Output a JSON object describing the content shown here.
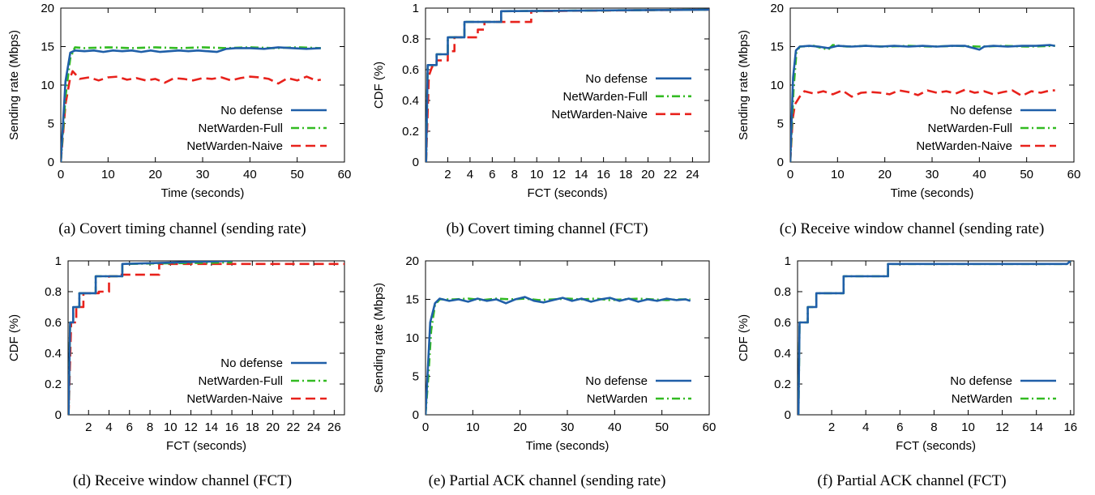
{
  "colors": {
    "no_defense": "#1f5fa8",
    "netwarden_full": "#33bb22",
    "netwarden_naive": "#e8221c"
  },
  "chart_data": [
    {
      "id": "a",
      "type": "line",
      "caption": "(a) Covert timing channel (sending rate)",
      "xlabel": "Time (seconds)",
      "ylabel": "Sending rate (Mbps)",
      "xlim": [
        0,
        60
      ],
      "ylim": [
        0,
        20
      ],
      "xticks": [
        0,
        10,
        20,
        30,
        40,
        50,
        60
      ],
      "yticks": [
        0,
        5,
        10,
        15,
        20
      ],
      "grid": false,
      "legend_position": "bottom-right",
      "series": [
        {
          "name": "No defense",
          "style": "solid",
          "color_key": "no_defense",
          "x": [
            0,
            1,
            2,
            3,
            5,
            7,
            9,
            11,
            13,
            15,
            17,
            19,
            21,
            23,
            25,
            27,
            29,
            31,
            33,
            35,
            37,
            40,
            43,
            46,
            49,
            52,
            55
          ],
          "y": [
            0,
            10.5,
            14.2,
            14.5,
            14.4,
            14.5,
            14.3,
            14.5,
            14.4,
            14.5,
            14.3,
            14.5,
            14.3,
            14.4,
            14.5,
            14.4,
            14.5,
            14.4,
            14.3,
            14.7,
            14.8,
            14.8,
            14.7,
            14.9,
            14.8,
            14.7,
            14.8
          ]
        },
        {
          "name": "NetWarden-Full",
          "style": "dashdot",
          "color_key": "netwarden_full",
          "x": [
            0,
            1,
            2,
            3,
            5,
            10,
            15,
            20,
            25,
            30,
            35,
            40,
            45,
            50,
            55
          ],
          "y": [
            0,
            8.5,
            13.5,
            14.9,
            14.8,
            14.9,
            14.8,
            14.9,
            14.8,
            14.9,
            14.8,
            14.9,
            14.8,
            14.9,
            14.8
          ]
        },
        {
          "name": "NetWarden-Naive",
          "style": "dashed",
          "color_key": "netwarden_naive",
          "x": [
            0,
            1,
            2,
            2.5,
            4,
            6,
            8,
            10,
            12,
            14,
            16,
            18,
            20,
            22,
            24,
            26,
            28,
            30,
            32,
            34,
            36,
            38,
            40,
            42,
            44,
            46,
            48,
            50,
            52,
            54,
            55
          ],
          "y": [
            0,
            7.5,
            11.0,
            11.8,
            10.8,
            11.0,
            10.6,
            11.0,
            11.1,
            10.7,
            10.9,
            10.6,
            10.8,
            10.3,
            10.9,
            10.8,
            10.6,
            10.9,
            10.8,
            11.0,
            10.6,
            10.9,
            11.1,
            11.0,
            10.8,
            10.2,
            10.9,
            10.6,
            11.1,
            10.6,
            10.7
          ]
        }
      ]
    },
    {
      "id": "b",
      "type": "line",
      "caption": "(b) Covert timing channel (FCT)",
      "xlabel": "FCT (seconds)",
      "ylabel": "CDF (%)",
      "xlim": [
        0,
        25.5
      ],
      "ylim": [
        0,
        1
      ],
      "xticks": [
        2,
        4,
        6,
        8,
        10,
        12,
        14,
        16,
        18,
        20,
        22,
        24
      ],
      "yticks": [
        0,
        0.2,
        0.4,
        0.6,
        0.8,
        1
      ],
      "grid": false,
      "legend_position": "center-right",
      "series": [
        {
          "name": "No defense",
          "style": "solid",
          "color_key": "no_defense",
          "x": [
            0.05,
            0.2,
            1,
            1,
            2,
            2,
            3.5,
            3.5,
            6.8,
            6.8,
            25.5
          ],
          "y": [
            0,
            0.63,
            0.63,
            0.7,
            0.7,
            0.81,
            0.81,
            0.91,
            0.91,
            0.98,
            0.99
          ]
        },
        {
          "name": "NetWarden-Full",
          "style": "dashdot",
          "color_key": "netwarden_full",
          "x": [
            0.05,
            0.2,
            1,
            1,
            2,
            2,
            3.5,
            3.5,
            6.8,
            6.8,
            25.5
          ],
          "y": [
            0,
            0.63,
            0.63,
            0.7,
            0.7,
            0.81,
            0.81,
            0.91,
            0.91,
            0.98,
            0.99
          ]
        },
        {
          "name": "NetWarden-Naive",
          "style": "dashed",
          "color_key": "netwarden_naive",
          "x": [
            0.05,
            0.3,
            0.6,
            1,
            1,
            2,
            2,
            2.6,
            2.6,
            4.7,
            4.7,
            5.3,
            5.3,
            9.5,
            9.5,
            25.5
          ],
          "y": [
            0,
            0.56,
            0.62,
            0.62,
            0.66,
            0.66,
            0.72,
            0.72,
            0.81,
            0.81,
            0.86,
            0.86,
            0.91,
            0.91,
            0.98,
            0.99
          ]
        }
      ]
    },
    {
      "id": "c",
      "type": "line",
      "caption": "(c) Receive window channel (sending rate)",
      "xlabel": "Time (seconds)",
      "ylabel": "Sending rate (Mbps)",
      "xlim": [
        0,
        60
      ],
      "ylim": [
        0,
        20
      ],
      "xticks": [
        0,
        10,
        20,
        30,
        40,
        50,
        60
      ],
      "yticks": [
        0,
        5,
        10,
        15,
        20
      ],
      "grid": false,
      "legend_position": "bottom-right",
      "series": [
        {
          "name": "No defense",
          "style": "solid",
          "color_key": "no_defense",
          "x": [
            0,
            0.6,
            1.2,
            2,
            4,
            6,
            8,
            10,
            13,
            16,
            19,
            22,
            25,
            28,
            31,
            34,
            37,
            40,
            41,
            43,
            46,
            49,
            52,
            55,
            56
          ],
          "y": [
            0,
            11,
            14.5,
            15.0,
            15.1,
            15.0,
            14.8,
            15.1,
            15.0,
            15.1,
            15.0,
            15.1,
            15.0,
            15.1,
            15.0,
            15.1,
            15.1,
            14.6,
            15.0,
            15.1,
            15.0,
            15.1,
            15.1,
            15.2,
            15.1
          ]
        },
        {
          "name": "NetWarden-Full",
          "style": "dashdot",
          "color_key": "netwarden_full",
          "x": [
            0,
            0.7,
            1.3,
            2,
            5,
            8,
            9,
            12,
            16,
            20,
            25,
            30,
            35,
            40,
            45,
            50,
            56
          ],
          "y": [
            0,
            9.5,
            14.2,
            15.0,
            15.1,
            14.6,
            15.2,
            15.0,
            15.1,
            15.0,
            15.1,
            15.0,
            15.1,
            15.0,
            15.1,
            15.0,
            15.1
          ]
        },
        {
          "name": "NetWarden-Naive",
          "style": "dashed",
          "color_key": "netwarden_naive",
          "x": [
            0,
            0.5,
            1,
            2,
            3,
            5,
            7,
            9,
            11,
            13,
            15,
            17,
            19,
            21,
            23,
            25,
            27,
            29,
            31,
            33,
            35,
            37,
            39,
            41,
            43,
            45,
            47,
            49,
            51,
            53,
            55,
            56
          ],
          "y": [
            0,
            5.5,
            7.5,
            8.5,
            9.2,
            8.9,
            9.2,
            8.8,
            9.3,
            8.5,
            9.0,
            9.1,
            9.0,
            8.8,
            9.3,
            9.1,
            8.7,
            9.3,
            9.0,
            9.2,
            8.9,
            9.4,
            9.0,
            9.2,
            8.8,
            9.1,
            9.3,
            8.6,
            9.2,
            9.0,
            9.3,
            9.3
          ]
        }
      ]
    },
    {
      "id": "d",
      "type": "line",
      "caption": "(d) Receive window channel (FCT)",
      "xlabel": "FCT (seconds)",
      "ylabel": "CDF (%)",
      "xlim": [
        0,
        27
      ],
      "ylim": [
        0,
        1
      ],
      "xticks": [
        2,
        4,
        6,
        8,
        10,
        12,
        14,
        16,
        18,
        20,
        22,
        24,
        26
      ],
      "yticks": [
        0,
        0.2,
        0.4,
        0.6,
        0.8,
        1
      ],
      "grid": false,
      "legend_position": "bottom-right",
      "series": [
        {
          "name": "No defense",
          "style": "solid",
          "color_key": "no_defense",
          "x": [
            0.05,
            0.2,
            0.5,
            0.5,
            1.1,
            1.1,
            2.7,
            2.7,
            5.3,
            5.3,
            16
          ],
          "y": [
            0,
            0.6,
            0.6,
            0.7,
            0.7,
            0.79,
            0.79,
            0.9,
            0.9,
            0.98,
            1.0
          ]
        },
        {
          "name": "NetWarden-Full",
          "style": "dashdot",
          "color_key": "netwarden_full",
          "x": [
            0.05,
            0.2,
            0.5,
            0.5,
            1.1,
            1.1,
            2.7,
            2.7,
            5.3,
            5.3,
            16
          ],
          "y": [
            0,
            0.6,
            0.6,
            0.7,
            0.7,
            0.79,
            0.79,
            0.9,
            0.9,
            0.98,
            0.99
          ]
        },
        {
          "name": "NetWarden-Naive",
          "style": "dashed",
          "color_key": "netwarden_naive",
          "x": [
            0.05,
            0.3,
            0.8,
            0.8,
            1.5,
            1.5,
            3.0,
            3.0,
            4.0,
            4.0,
            5.0,
            5.0,
            8.9,
            8.9,
            27
          ],
          "y": [
            0,
            0.6,
            0.6,
            0.7,
            0.7,
            0.79,
            0.79,
            0.8,
            0.8,
            0.9,
            0.9,
            0.91,
            0.91,
            0.98,
            0.98
          ]
        }
      ]
    },
    {
      "id": "e",
      "type": "line",
      "caption": "(e) Partial ACK channel (sending rate)",
      "xlabel": "Time (seconds)",
      "ylabel": "Sending rate (Mbps)",
      "xlim": [
        0,
        60
      ],
      "ylim": [
        0,
        20
      ],
      "xticks": [
        0,
        10,
        20,
        30,
        40,
        50,
        60
      ],
      "yticks": [
        0,
        5,
        10,
        15,
        20
      ],
      "grid": false,
      "legend_position": "bottom-right",
      "series": [
        {
          "name": "No defense",
          "style": "solid",
          "color_key": "no_defense",
          "x": [
            0,
            0.5,
            1,
            2,
            3,
            5,
            7,
            9,
            11,
            13,
            15,
            17,
            19,
            21,
            23,
            25,
            27,
            29,
            31,
            33,
            35,
            37,
            39,
            41,
            43,
            45,
            47,
            49,
            51,
            53,
            55,
            56
          ],
          "y": [
            0,
            6,
            12,
            14.5,
            15.1,
            14.8,
            15.0,
            14.7,
            15.1,
            14.8,
            15.0,
            14.5,
            15.0,
            15.3,
            14.8,
            14.6,
            14.9,
            15.2,
            14.8,
            15.1,
            14.7,
            15.0,
            15.2,
            14.8,
            15.1,
            14.7,
            15.0,
            14.8,
            15.1,
            14.9,
            15.0,
            14.8
          ]
        },
        {
          "name": "NetWarden",
          "style": "dashdot",
          "color_key": "netwarden_full",
          "x": [
            0,
            0.6,
            1.2,
            2,
            3,
            6,
            9,
            12,
            15,
            18,
            21,
            24,
            27,
            30,
            33,
            36,
            39,
            42,
            45,
            48,
            51,
            54,
            56
          ],
          "y": [
            0,
            5,
            11,
            14.3,
            15.0,
            15.0,
            15.1,
            14.9,
            15.1,
            15.0,
            15.1,
            14.9,
            15.0,
            15.1,
            15.0,
            15.1,
            14.9,
            15.0,
            15.1,
            15.0,
            14.9,
            15.0,
            15.0
          ]
        }
      ]
    },
    {
      "id": "f",
      "type": "line",
      "caption": "(f) Partial ACK channel (FCT)",
      "xlabel": "FCT (seconds)",
      "ylabel": "CDF (%)",
      "xlim": [
        0,
        16.2
      ],
      "ylim": [
        0,
        1
      ],
      "xticks": [
        2,
        4,
        6,
        8,
        10,
        12,
        14,
        16
      ],
      "yticks": [
        0,
        0.2,
        0.4,
        0.6,
        0.8,
        1
      ],
      "grid": false,
      "legend_position": "bottom-right",
      "series": [
        {
          "name": "No defense",
          "style": "solid",
          "color_key": "no_defense",
          "x": [
            0.05,
            0.12,
            0.3,
            0.3,
            0.6,
            0.6,
            1.1,
            1.1,
            2.7,
            2.7,
            5.3,
            5.3,
            15.8,
            16
          ],
          "y": [
            0,
            0.6,
            0.6,
            0.6,
            0.6,
            0.7,
            0.7,
            0.79,
            0.79,
            0.9,
            0.9,
            0.98,
            0.98,
            1.0
          ]
        },
        {
          "name": "NetWarden",
          "style": "dashdot",
          "color_key": "netwarden_full",
          "x": [
            0.05,
            0.12,
            0.3,
            0.3,
            0.6,
            0.6,
            1.1,
            1.1,
            2.7,
            2.7,
            5.3,
            5.3,
            15.8,
            16
          ],
          "y": [
            0,
            0.6,
            0.6,
            0.6,
            0.6,
            0.7,
            0.7,
            0.79,
            0.79,
            0.9,
            0.9,
            0.98,
            0.98,
            1.0
          ]
        }
      ]
    }
  ]
}
